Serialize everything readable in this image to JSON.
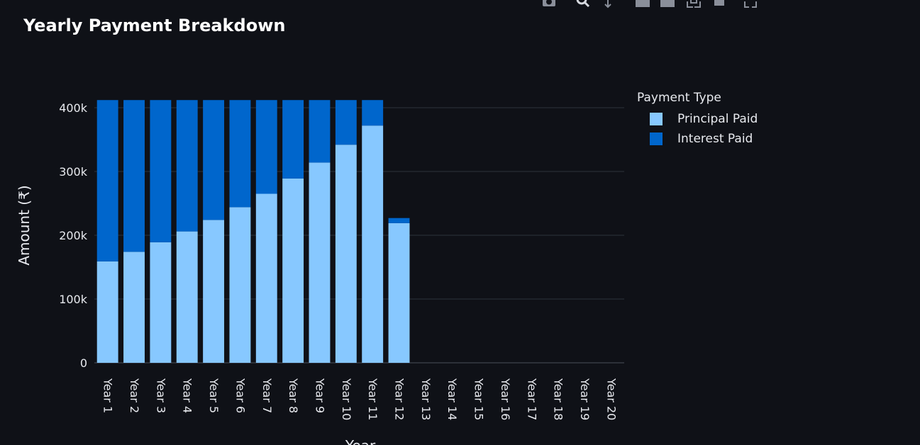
{
  "title": "Yearly Payment Breakdown",
  "modebar": {
    "icons": [
      "camera-icon",
      "zoom-icon",
      "pan-icon",
      "zoom-in-icon",
      "zoom-out-icon",
      "autoscale-icon",
      "reset-axes-icon",
      "fullscreen-icon"
    ]
  },
  "legend": {
    "title": "Payment Type",
    "items": [
      {
        "label": "Principal Paid",
        "color": "#87c8ff"
      },
      {
        "label": "Interest Paid",
        "color": "#0066cc"
      }
    ]
  },
  "colors": {
    "background": "#0f1117",
    "grid": "#2e323b",
    "axis_text": "#e8eaef"
  },
  "chart_data": {
    "type": "bar",
    "stacked": true,
    "title": "Yearly Payment Breakdown",
    "xlabel": "Year",
    "ylabel": "Amount (₹)",
    "ylim": [
      0,
      400000
    ],
    "yticks": [
      0,
      100000,
      200000,
      300000,
      400000
    ],
    "ytick_labels": [
      "0",
      "100k",
      "200k",
      "300k",
      "400k"
    ],
    "grid": true,
    "legend_position": "right",
    "categories": [
      "Year 1",
      "Year 2",
      "Year 3",
      "Year 4",
      "Year 5",
      "Year 6",
      "Year 7",
      "Year 8",
      "Year 9",
      "Year 10",
      "Year 11",
      "Year 12",
      "Year 13",
      "Year 14",
      "Year 15",
      "Year 16",
      "Year 17",
      "Year 18",
      "Year 19",
      "Year 20"
    ],
    "series": [
      {
        "name": "Principal Paid",
        "color": "#87c8ff",
        "values": [
          159000,
          174000,
          189000,
          206000,
          224000,
          244000,
          265000,
          289000,
          314000,
          342000,
          372000,
          219000,
          0,
          0,
          0,
          0,
          0,
          0,
          0,
          0
        ]
      },
      {
        "name": "Interest Paid",
        "color": "#0066cc",
        "values": [
          253000,
          238000,
          223000,
          206000,
          188000,
          168000,
          147000,
          123000,
          98000,
          70000,
          40000,
          8000,
          0,
          0,
          0,
          0,
          0,
          0,
          0,
          0
        ]
      }
    ]
  }
}
